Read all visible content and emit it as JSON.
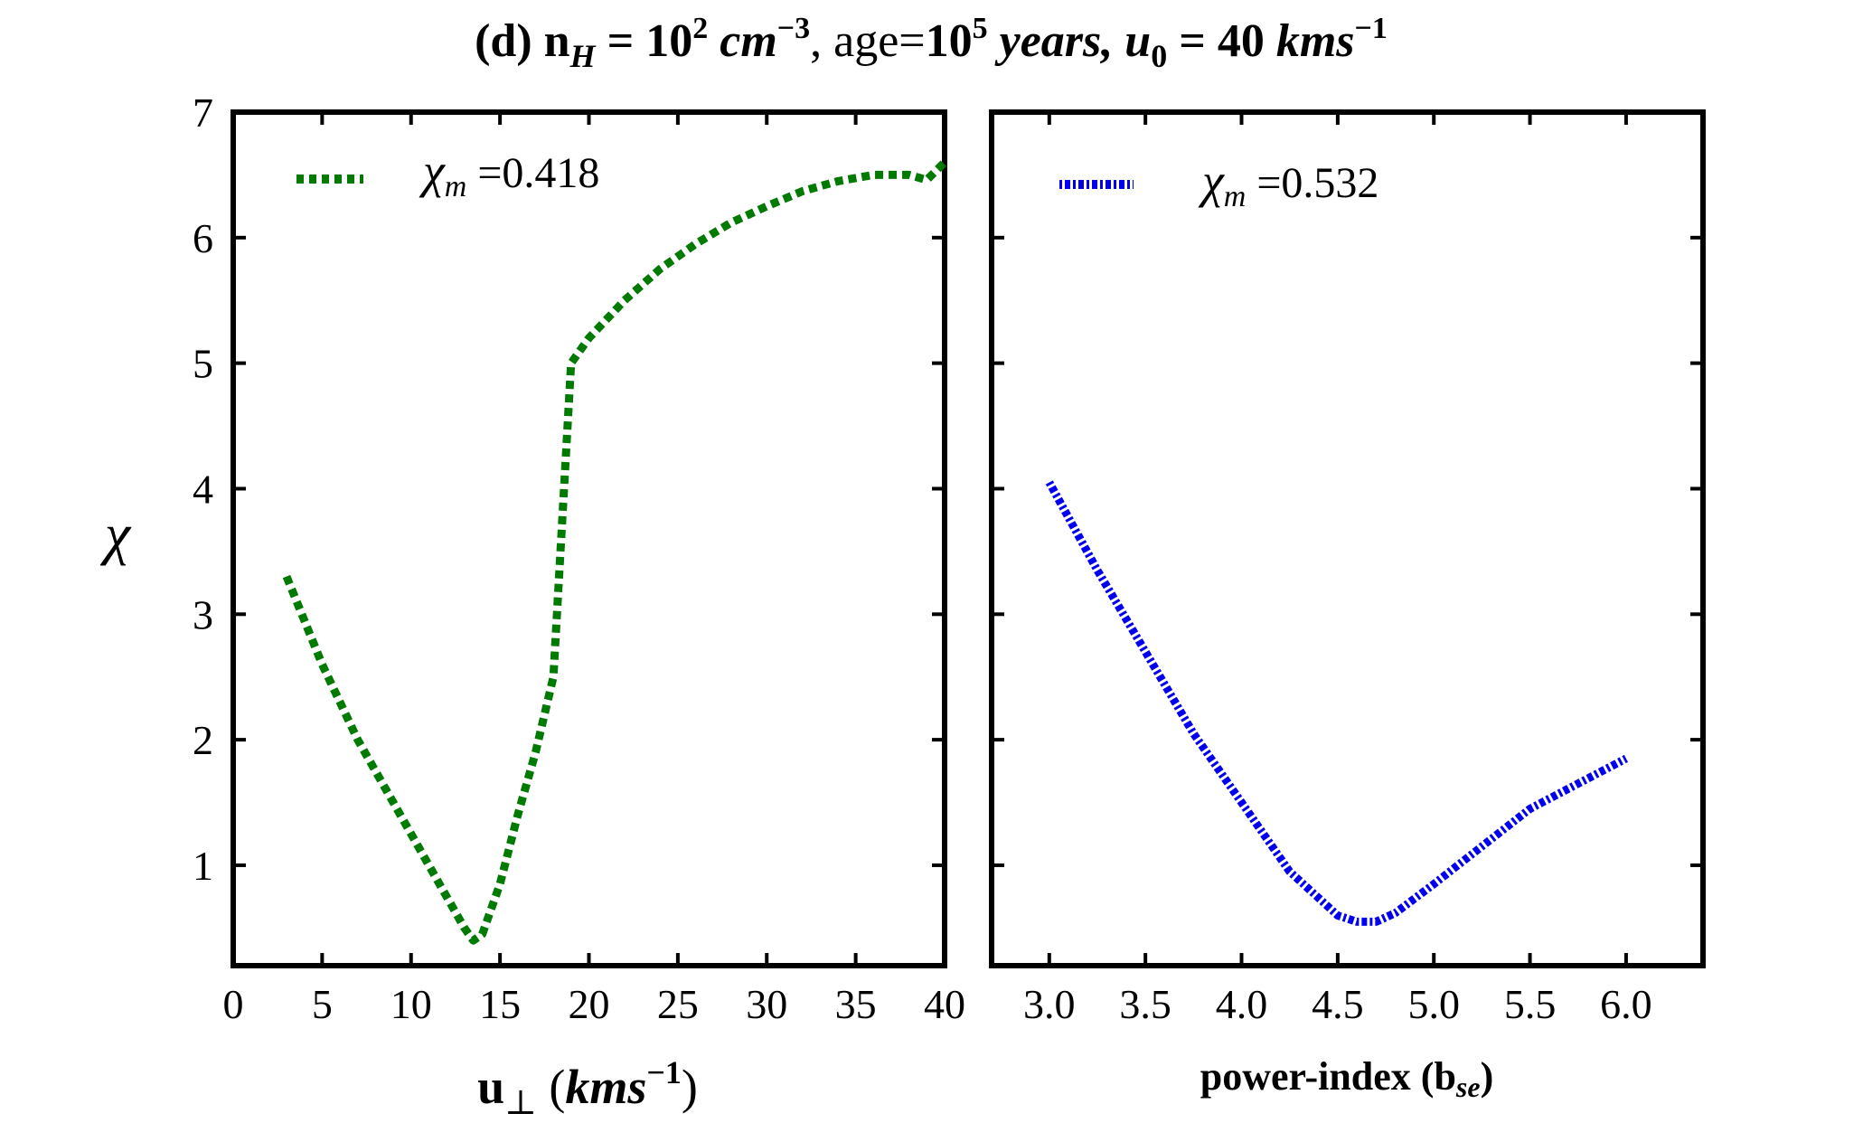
{
  "title": {
    "prefix": "(d) n",
    "sub_H": "H",
    "eq1": " = 10",
    "sup_2": "2",
    "cm": " cm",
    "sup_m3": "−3",
    "comma1": ", ",
    "age": "age=",
    "ten": "10",
    "sup_5": "5",
    "years": " years, ",
    "u": "u",
    "sub_0": "0",
    "eq2": " = 40 ",
    "kms": "kms",
    "sup_m1": "−1"
  },
  "chart_data": [
    {
      "type": "line",
      "panel": "left",
      "ylabel": "χ",
      "xlabel": {
        "main": "u",
        "sub": "⊥",
        "open": " (",
        "unit": "kms",
        "sup": "−1",
        "close": ")"
      },
      "xlim": [
        0,
        40
      ],
      "ylim": [
        0.2,
        7.0
      ],
      "xticks": [
        0,
        5,
        10,
        15,
        20,
        25,
        30,
        35,
        40
      ],
      "xtick_labels": [
        "0",
        "5",
        "10",
        "15",
        "20",
        "25",
        "30",
        "35",
        "40"
      ],
      "yticks": [
        1,
        2,
        3,
        4,
        5,
        6,
        7
      ],
      "ytick_labels": [
        "1",
        "2",
        "3",
        "4",
        "5",
        "6",
        "7"
      ],
      "legend": {
        "symbol": "χ",
        "sub": "m",
        "text": " =0.418",
        "position": "top-left"
      },
      "series": [
        {
          "name": "χm =0.418",
          "color": "#007a00",
          "style": "dotted",
          "x": [
            3,
            5,
            7,
            9,
            11,
            13,
            13.5,
            14,
            15,
            16,
            17,
            18,
            19,
            20,
            22,
            24,
            26,
            28,
            30,
            32,
            34,
            36,
            38,
            39,
            40
          ],
          "y": [
            3.3,
            2.6,
            2.0,
            1.5,
            1.0,
            0.5,
            0.4,
            0.45,
            0.85,
            1.4,
            1.9,
            2.5,
            5.0,
            5.2,
            5.5,
            5.75,
            5.95,
            6.12,
            6.25,
            6.37,
            6.45,
            6.5,
            6.5,
            6.46,
            6.6
          ]
        }
      ]
    },
    {
      "type": "line",
      "panel": "right",
      "xlabel": {
        "main": "power-index (b",
        "sub": "se",
        "close": ")"
      },
      "xlim": [
        2.7,
        6.4
      ],
      "ylim": [
        0.2,
        7.0
      ],
      "xticks": [
        3.0,
        3.5,
        4.0,
        4.5,
        5.0,
        5.5,
        6.0
      ],
      "xtick_labels": [
        "3.0",
        "3.5",
        "4.0",
        "4.5",
        "5.0",
        "5.5",
        "6.0"
      ],
      "yticks": [
        1,
        2,
        3,
        4,
        5,
        6,
        7
      ],
      "legend": {
        "symbol": "χ",
        "sub": "m",
        "text": " =0.532",
        "position": "top-left"
      },
      "series": [
        {
          "name": "χm =0.532",
          "color": "#0000ee",
          "style": "dash-dot",
          "x": [
            3.0,
            3.25,
            3.5,
            3.75,
            4.0,
            4.25,
            4.5,
            4.6,
            4.7,
            4.8,
            5.0,
            5.25,
            5.5,
            5.75,
            6.0
          ],
          "y": [
            4.05,
            3.35,
            2.7,
            2.05,
            1.5,
            0.95,
            0.6,
            0.55,
            0.55,
            0.62,
            0.85,
            1.15,
            1.45,
            1.65,
            1.85
          ]
        }
      ]
    }
  ]
}
